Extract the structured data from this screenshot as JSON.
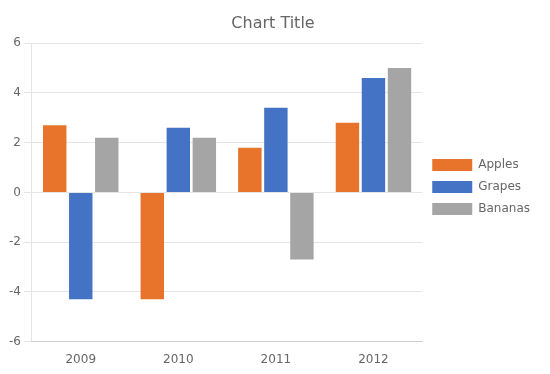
{
  "chart_data": {
    "type": "bar",
    "title": "Chart Title",
    "categories": [
      "2009",
      "2010",
      "2011",
      "2012"
    ],
    "series": [
      {
        "name": "Apples",
        "color": "#E8732A",
        "values": [
          2.7,
          -4.3,
          1.8,
          2.8
        ]
      },
      {
        "name": "Grapes",
        "color": "#4472C4",
        "values": [
          -4.3,
          2.6,
          3.4,
          4.6
        ]
      },
      {
        "name": "Bananas",
        "color": "#A5A5A5",
        "values": [
          2.2,
          2.2,
          -2.7,
          5.0
        ]
      }
    ],
    "ylim": [
      -6,
      6
    ],
    "yticks": [
      -6,
      -4,
      -2,
      0,
      2,
      4,
      6
    ],
    "grid": true,
    "legend": "right"
  }
}
